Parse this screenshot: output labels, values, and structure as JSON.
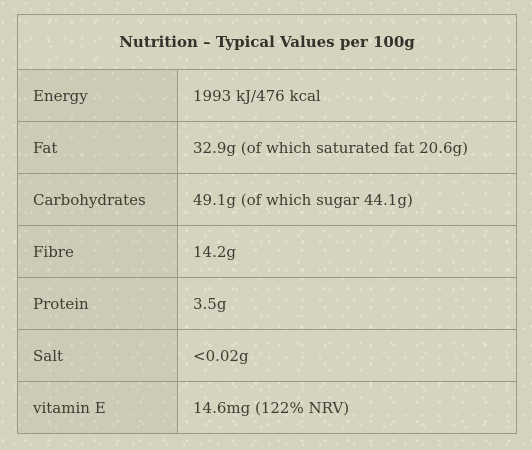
{
  "table": {
    "title": "Nutrition – Typical Values per 100g",
    "rows": [
      {
        "label": "Energy",
        "value": "1993 kJ/476 kcal"
      },
      {
        "label": "Fat",
        "value": "32.9g (of which saturated fat 20.6g)"
      },
      {
        "label": "Carbohydrates",
        "value": "49.1g (of which sugar 44.1g)"
      },
      {
        "label": "Fibre",
        "value": "14.2g"
      },
      {
        "label": "Protein",
        "value": "3.5g"
      },
      {
        "label": "Salt",
        "value": "<0.02g"
      },
      {
        "label": "vitamin E",
        "value": "14.6mg (122% NRV)"
      }
    ]
  },
  "colors": {
    "background": "#d4d3bd",
    "border": "#9a998a",
    "text": "#3d3d33"
  }
}
